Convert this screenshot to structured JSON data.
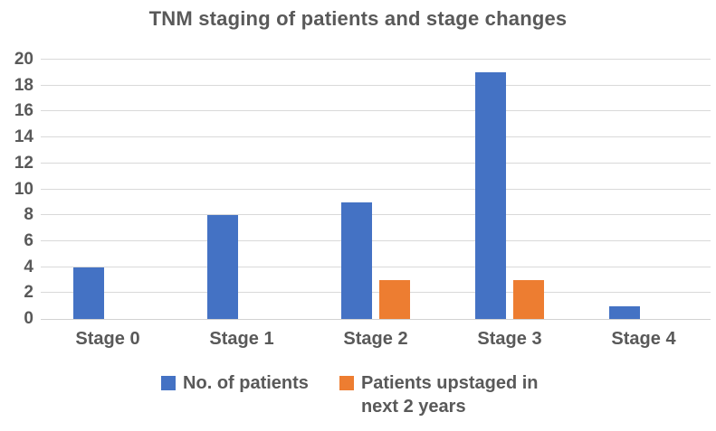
{
  "chart_data": {
    "type": "bar",
    "title": "TNM staging of patients and stage changes",
    "categories": [
      "Stage 0",
      "Stage 1",
      "Stage 2",
      "Stage 3",
      "Stage 4"
    ],
    "series": [
      {
        "name": "No. of patients",
        "color": "#4472C4",
        "values": [
          4,
          8,
          9,
          19,
          1
        ]
      },
      {
        "name": "Patients upstaged in next 2 years",
        "color": "#ED7D31",
        "values": [
          0,
          0,
          3,
          3,
          0
        ]
      }
    ],
    "xlabel": "",
    "ylabel": "",
    "ylim": [
      0,
      20
    ],
    "yticks": [
      0,
      2,
      4,
      6,
      8,
      10,
      12,
      14,
      16,
      18,
      20
    ],
    "grid": true,
    "legend_position": "bottom",
    "colors": {
      "gridline": "#D9D9D9",
      "axis_line": "#D2D2D2",
      "text": "#595959",
      "background": "#FFFFFF"
    }
  }
}
